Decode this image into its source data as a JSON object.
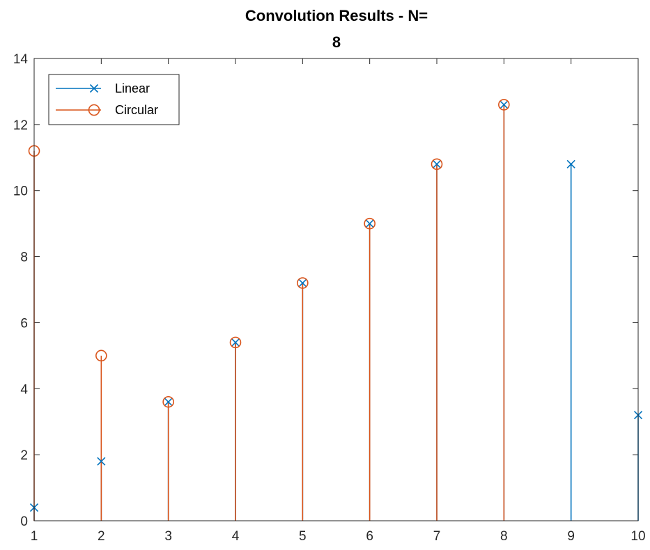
{
  "colors": {
    "linear": "#0072BD",
    "circular": "#D95319",
    "axis": "#262626",
    "background": "#ffffff"
  },
  "chart_data": {
    "type": "stem",
    "title": [
      "Convolution Results - N=",
      "8"
    ],
    "xlabel": "",
    "ylabel": "",
    "xlim": [
      1,
      10
    ],
    "ylim": [
      0,
      14
    ],
    "xticks": [
      "1",
      "2",
      "3",
      "4",
      "5",
      "6",
      "7",
      "8",
      "9",
      "10"
    ],
    "yticks": [
      "0",
      "2",
      "4",
      "6",
      "8",
      "10",
      "12",
      "14"
    ],
    "grid": false,
    "legend": {
      "placement": "top-left"
    },
    "series": [
      {
        "name": "Linear",
        "marker": "x",
        "x": [
          1,
          2,
          3,
          4,
          5,
          6,
          7,
          8,
          9,
          10
        ],
        "y": [
          0.4,
          1.8,
          3.6,
          5.4,
          7.2,
          9.0,
          10.8,
          12.6,
          10.8,
          3.2
        ]
      },
      {
        "name": "Circular",
        "marker": "o",
        "x": [
          1,
          2,
          3,
          4,
          5,
          6,
          7,
          8
        ],
        "y": [
          11.2,
          5.0,
          3.6,
          5.4,
          7.2,
          9.0,
          10.8,
          12.6
        ]
      }
    ]
  }
}
